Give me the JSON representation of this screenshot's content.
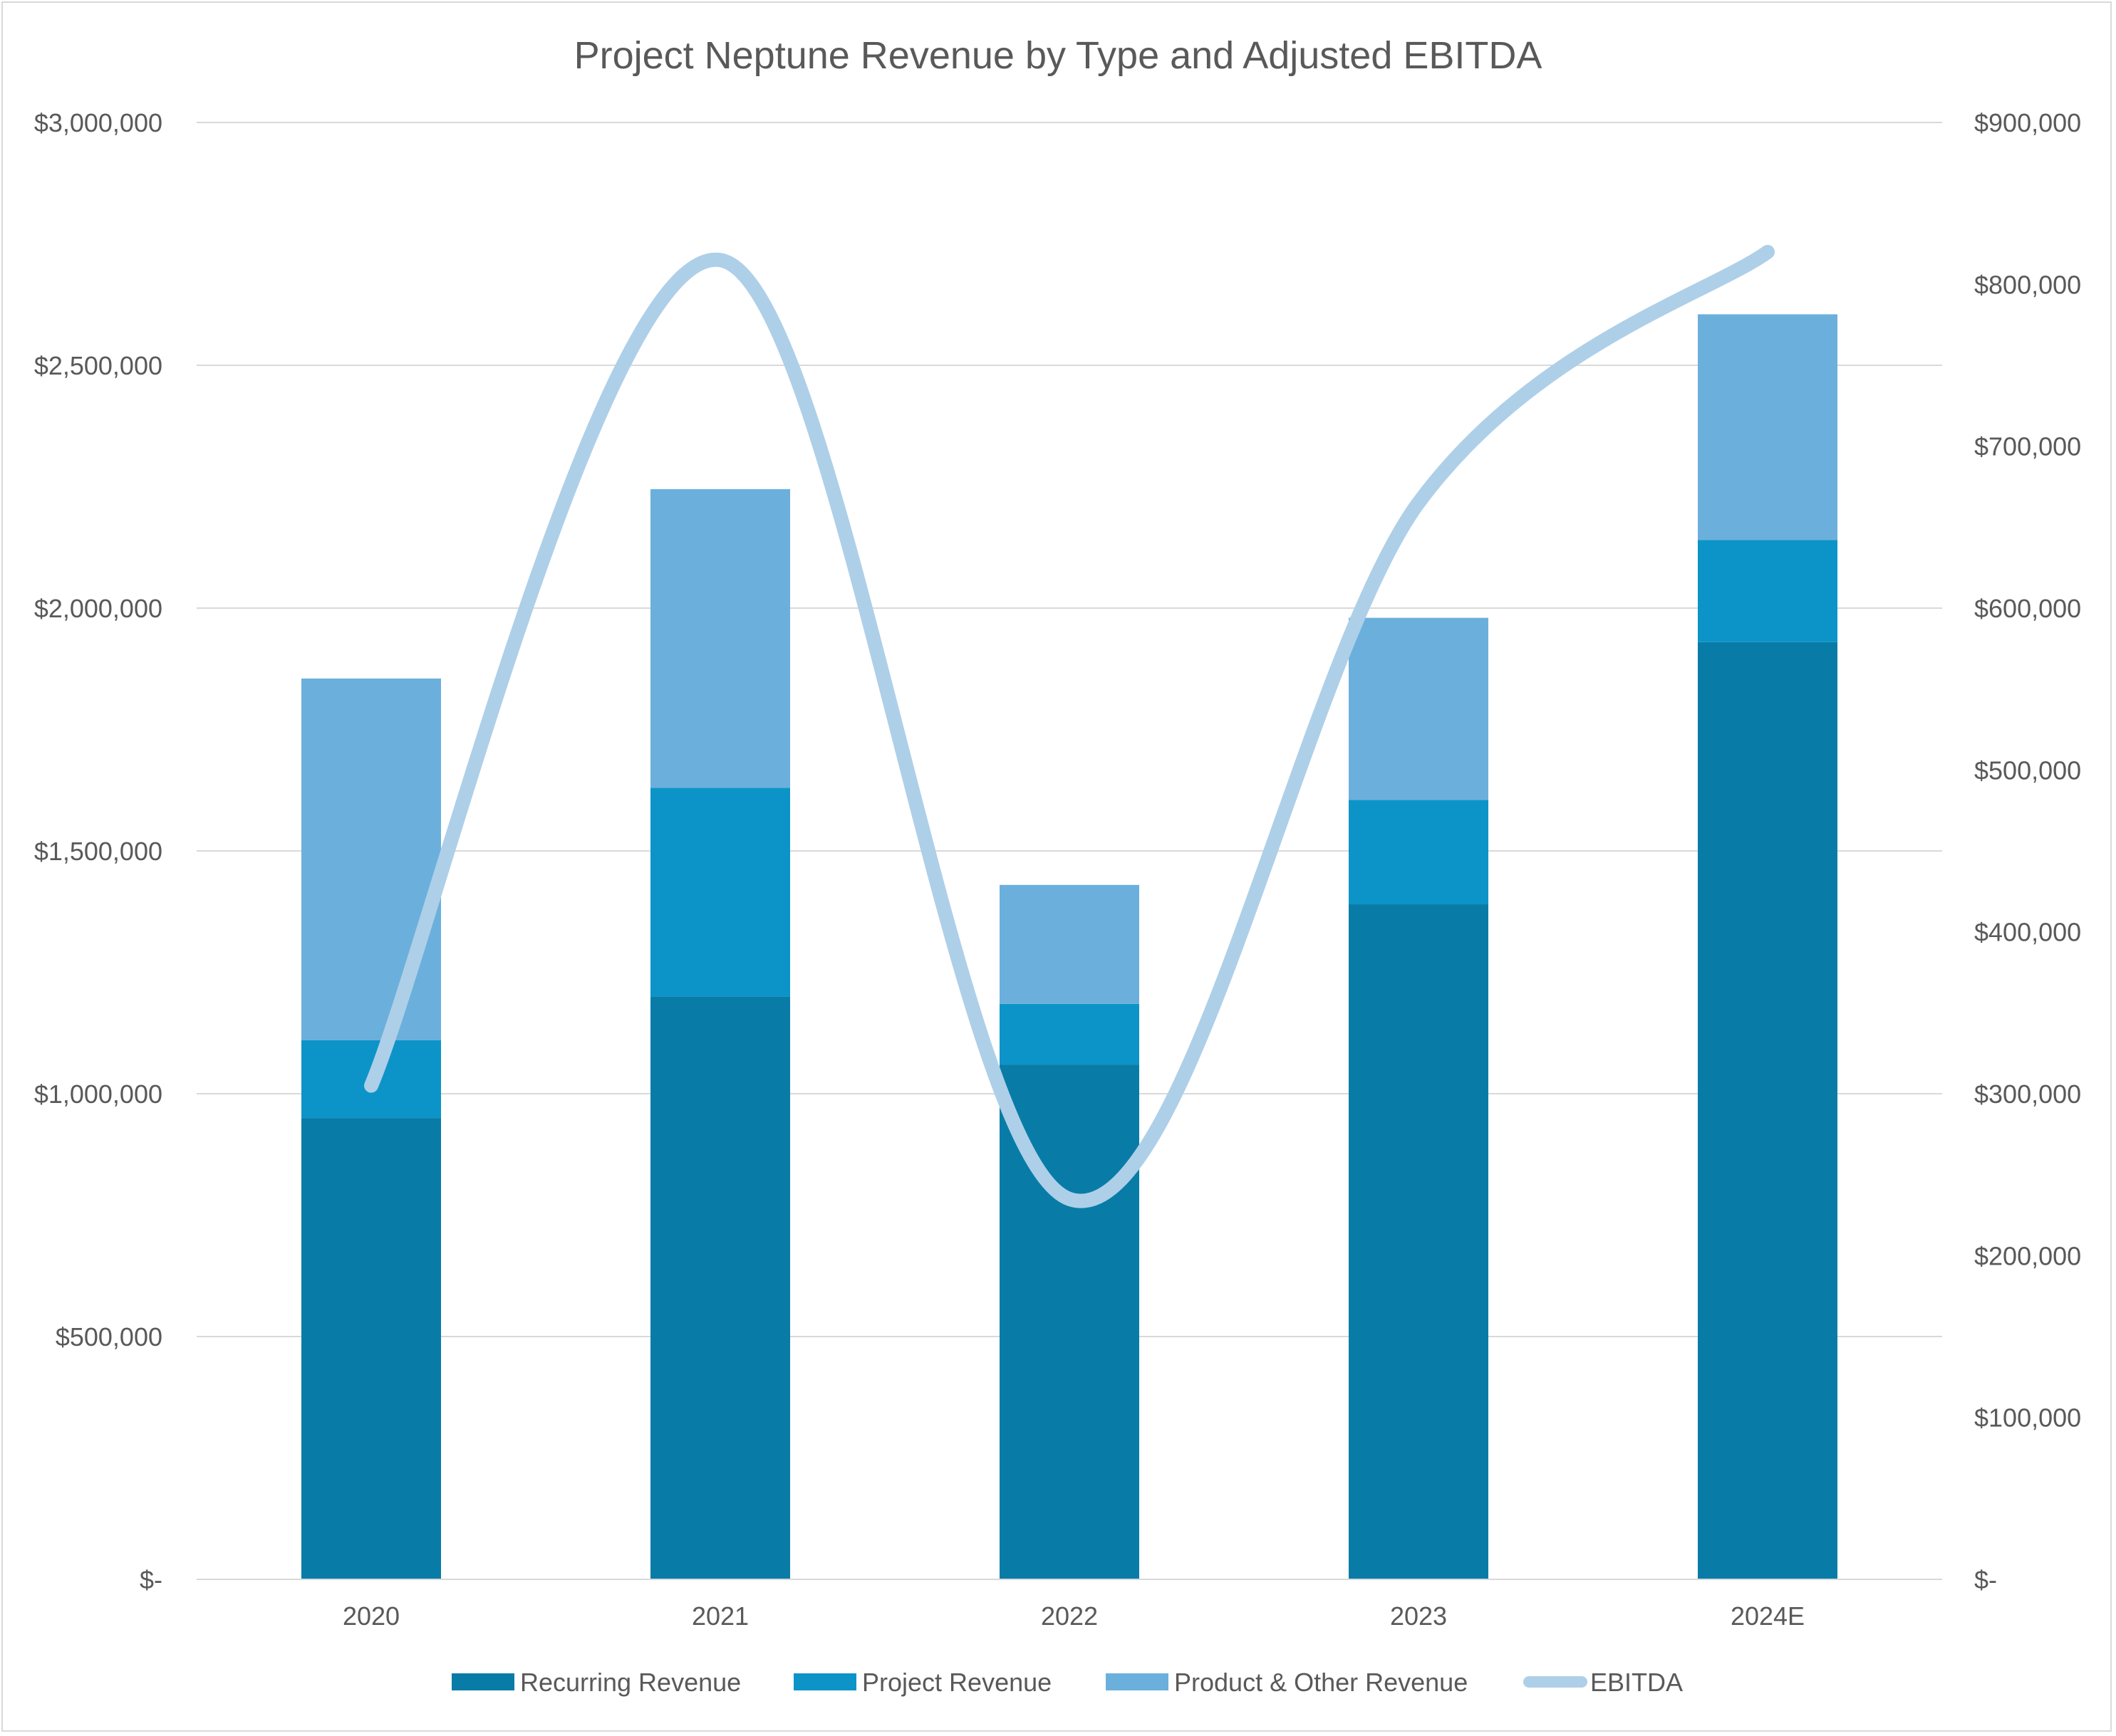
{
  "chart_data": {
    "type": "bar",
    "stacked": true,
    "title": "Project Neptune Revenue by Type and Adjusted EBITDA",
    "categories": [
      "2020",
      "2021",
      "2022",
      "2023",
      "2024E"
    ],
    "series": [
      {
        "name": "Recurring Revenue",
        "type": "bar",
        "axis": "left",
        "color": "#087CA7",
        "values": [
          950000,
          1200000,
          1060000,
          1390000,
          1930000
        ]
      },
      {
        "name": "Project Revenue",
        "type": "bar",
        "axis": "left",
        "color": "#0C94C8",
        "values": [
          160000,
          430000,
          125000,
          215000,
          210000
        ]
      },
      {
        "name": "Product & Other Revenue",
        "type": "bar",
        "axis": "left",
        "color": "#6BB0DC",
        "values": [
          745000,
          615000,
          245000,
          375000,
          465000
        ]
      },
      {
        "name": "EBITDA",
        "type": "line",
        "axis": "right",
        "smooth": true,
        "color": "#AECFE8",
        "values": [
          305000,
          815000,
          235000,
          665000,
          820000
        ]
      }
    ],
    "y_left": {
      "min": 0,
      "max": 3000000,
      "ticks": [
        0,
        500000,
        1000000,
        1500000,
        2000000,
        2500000,
        3000000
      ],
      "tick_labels": [
        "$-",
        "$500,000",
        "$1,000,000",
        "$1,500,000",
        "$2,000,000",
        "$2,500,000",
        "$3,000,000"
      ]
    },
    "y_right": {
      "min": 0,
      "max": 900000,
      "ticks": [
        0,
        100000,
        200000,
        300000,
        400000,
        500000,
        600000,
        700000,
        800000,
        900000
      ],
      "tick_labels": [
        "$-",
        "$100,000",
        "$200,000",
        "$300,000",
        "$400,000",
        "$500,000",
        "$600,000",
        "$700,000",
        "$800,000",
        "$900,000"
      ]
    },
    "xlabel": "",
    "ylabel": "",
    "grid": true,
    "legend_position": "bottom",
    "gridline_color": "#d9d9d9",
    "text_color": "#595959"
  }
}
